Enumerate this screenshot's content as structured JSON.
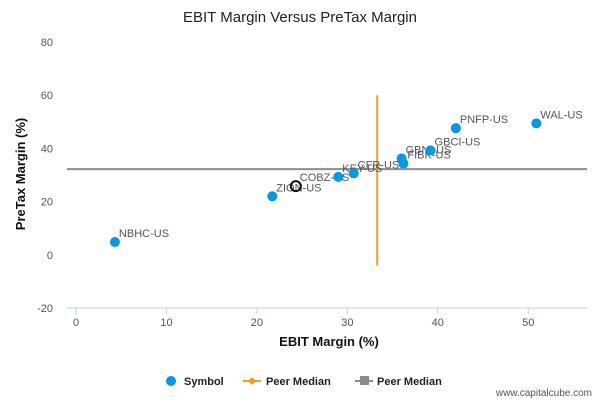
{
  "chart_data": {
    "type": "scatter",
    "title": "EBIT Margin Versus PreTax Margin",
    "xlabel": "EBIT Margin (%)",
    "ylabel": "PreTax Margin (%)",
    "xlim": [
      -1,
      56.5
    ],
    "ylim": [
      -20,
      80
    ],
    "xticks": [
      0,
      10,
      20,
      30,
      40,
      50
    ],
    "yticks": [
      -20,
      0,
      20,
      40,
      60,
      80
    ],
    "grid": false,
    "legend_position": "bottom",
    "colors": {
      "points": "#0099e6",
      "vertical_median": "#f0a020",
      "horizontal_median": "#8c8c8c",
      "highlight_stroke": "#111111"
    },
    "series": [
      {
        "name": "Symbol",
        "points": [
          {
            "label": "NBHC-US",
            "x": 4.3,
            "y": 4.8
          },
          {
            "label": "ZION-US",
            "x": 21.7,
            "y": 22.0
          },
          {
            "label": "COBZ-US",
            "x": 24.3,
            "y": 25.8,
            "highlight": true
          },
          {
            "label": "KEY-US",
            "x": 29.0,
            "y": 29.3
          },
          {
            "label": "CFR-US",
            "x": 30.7,
            "y": 30.6
          },
          {
            "label": "GBNI-US",
            "x": 36.0,
            "y": 36.2
          },
          {
            "label": "FIBK-US",
            "x": 36.2,
            "y": 34.3
          },
          {
            "label": "GBCI-US",
            "x": 39.2,
            "y": 39.2
          },
          {
            "label": "PNFP-US",
            "x": 42.0,
            "y": 47.6
          },
          {
            "label": "WAL-US",
            "x": 50.9,
            "y": 49.4
          }
        ]
      }
    ],
    "peer_median_x": 33.3,
    "peer_median_y": 32.2,
    "legend": [
      "Symbol",
      "Peer Median",
      "Peer Median"
    ]
  },
  "footer": "www.capitalcube.com"
}
